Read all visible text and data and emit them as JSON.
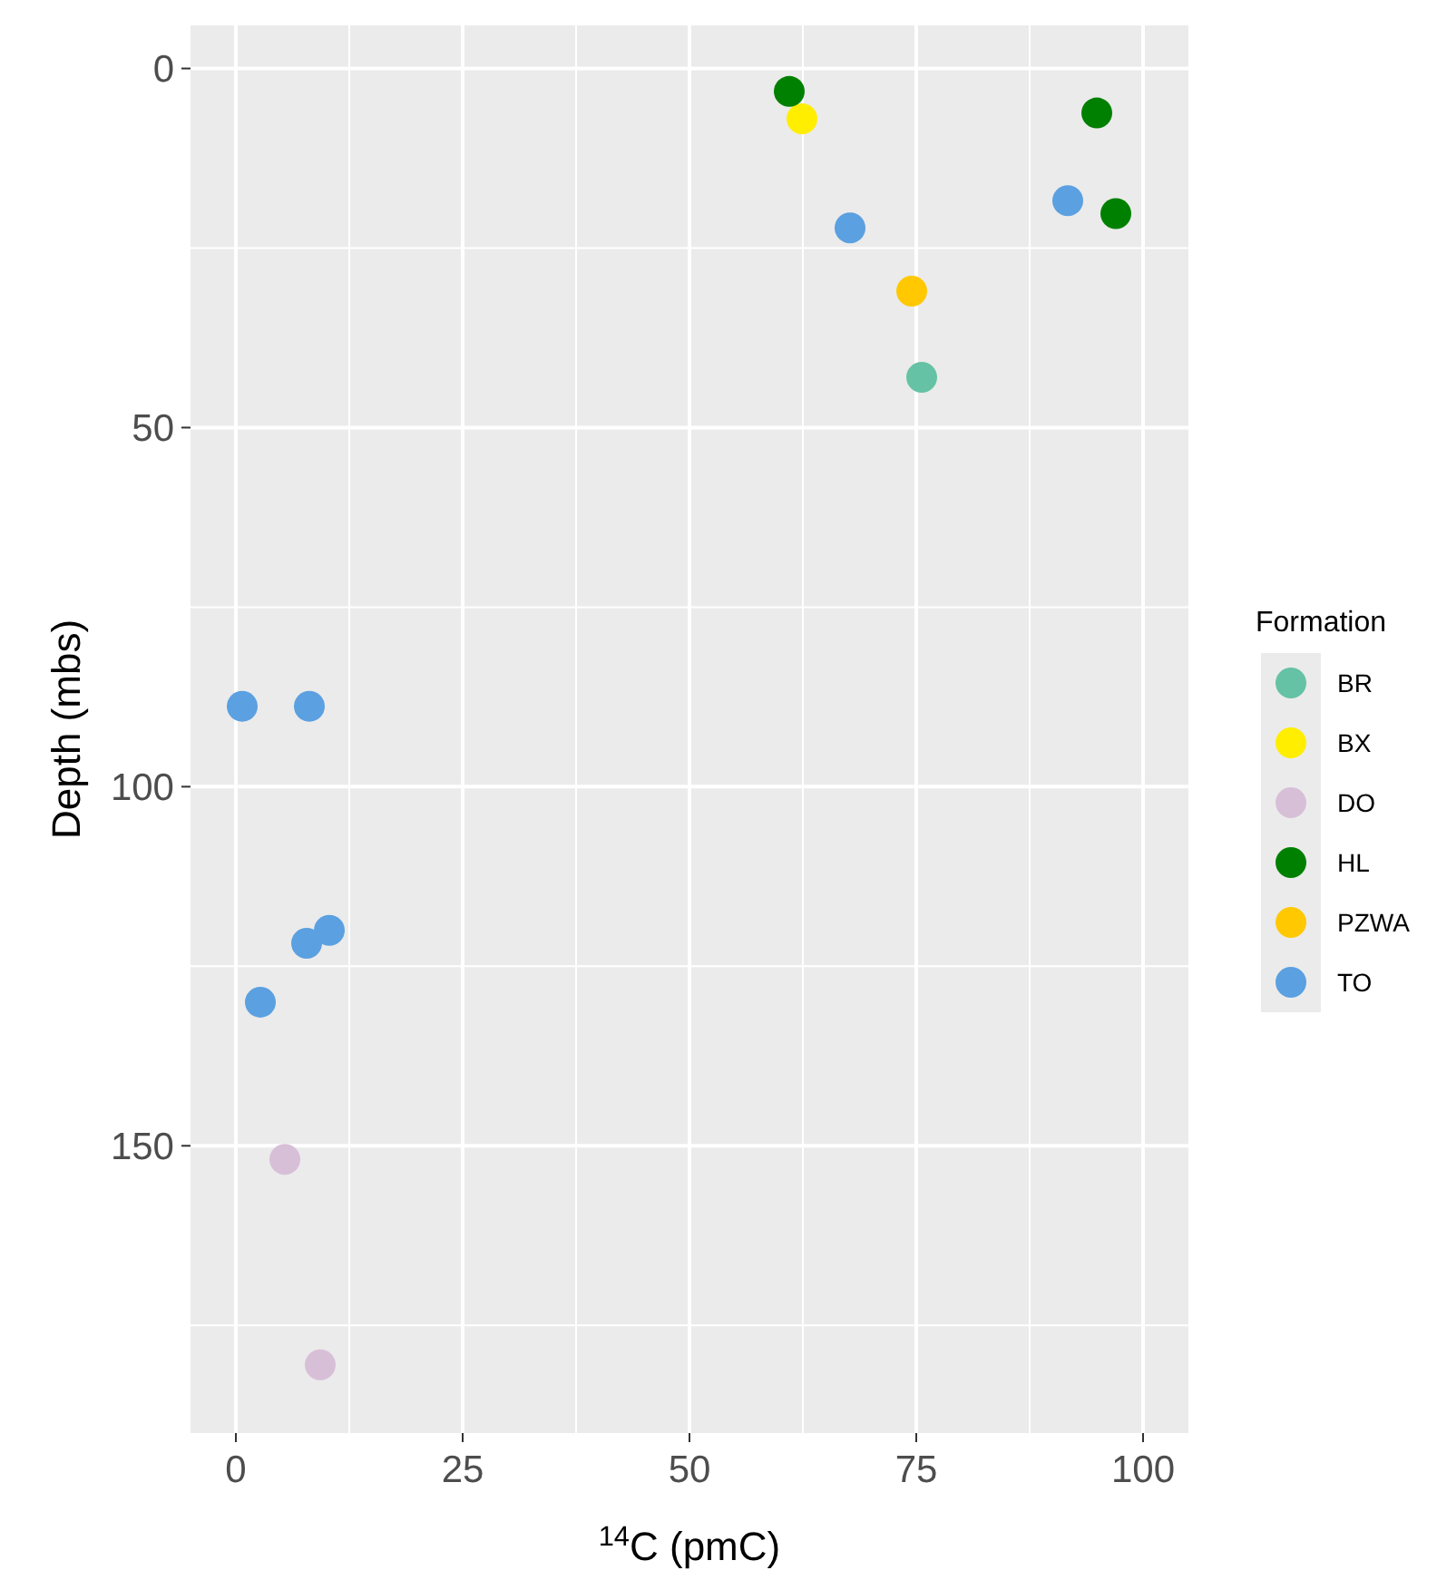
{
  "chart_data": {
    "type": "scatter",
    "xlabel": "$^{14}$C (pmC)",
    "ylabel": "Depth (mbs)",
    "legend_title": "Formation",
    "legend": "right",
    "grid": true,
    "marker": "circle",
    "xlim": [
      -5,
      105
    ],
    "xticks": [
      0,
      25,
      50,
      75,
      100
    ],
    "ylim": [
      190,
      -6
    ],
    "yticks": [
      0,
      50,
      100,
      150
    ],
    "series": [
      {
        "name": "BR",
        "color": "#66c2a5",
        "x": [
          75.6
        ],
        "values": [
          43.0
        ]
      },
      {
        "name": "BX",
        "color": "#ffee00",
        "x": [
          62.4
        ],
        "values": [
          7.0
        ]
      },
      {
        "name": "DO",
        "color": "#d8bfd8",
        "x": [
          5.4,
          9.3
        ],
        "values": [
          151.9,
          180.5
        ]
      },
      {
        "name": "HL",
        "color": "#008000",
        "x": [
          61.0,
          94.9,
          97.0
        ],
        "values": [
          3.2,
          6.2,
          20.2
        ]
      },
      {
        "name": "PZWA",
        "color": "#ffc800",
        "x": [
          74.5
        ],
        "values": [
          31.0
        ]
      },
      {
        "name": "TO",
        "color": "#5ba0e0",
        "x": [
          67.7,
          91.7,
          0.7,
          8.1,
          10.3,
          7.8,
          2.7
        ],
        "values": [
          22.2,
          18.4,
          88.8,
          88.8,
          120.0,
          121.8,
          130.0
        ]
      }
    ]
  }
}
